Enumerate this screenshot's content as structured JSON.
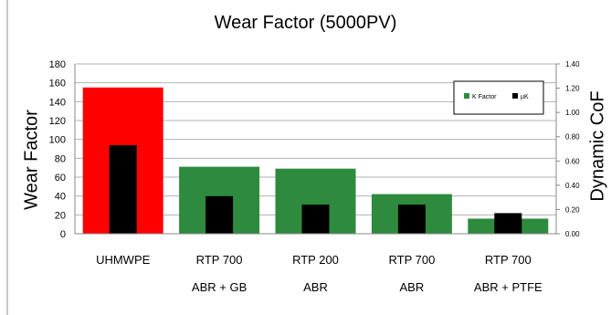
{
  "chart_data": {
    "type": "bar",
    "title": "Wear Factor (5000PV)",
    "ylabel": "Wear Factor",
    "y2label": "Dynamic CoF",
    "categories": [
      [
        "UHMWPE",
        ""
      ],
      [
        "RTP 700",
        "ABR + GB"
      ],
      [
        "RTP 200",
        "ABR"
      ],
      [
        "RTP 700",
        "ABR"
      ],
      [
        "RTP 700",
        "ABR + PTFE"
      ]
    ],
    "series": [
      {
        "name": "K Factor",
        "axis": "left",
        "values": [
          155,
          71,
          69,
          42,
          16
        ],
        "colors": [
          "#ff0000",
          "#2e8b3e",
          "#2e8b3e",
          "#2e8b3e",
          "#2e8b3e"
        ]
      },
      {
        "name": "µK",
        "axis": "right",
        "values": [
          0.73,
          0.31,
          0.24,
          0.24,
          0.17
        ],
        "color": "#000000"
      }
    ],
    "ylim": [
      0,
      180
    ],
    "yticks": [
      "0",
      "20",
      "40",
      "60",
      "80",
      "100",
      "120",
      "140",
      "160",
      "180"
    ],
    "y2lim": [
      0,
      1.4
    ],
    "y2ticks": [
      "0.00",
      "0.20",
      "0.40",
      "0.60",
      "0.80",
      "1.00",
      "1.20",
      "1.40"
    ],
    "legend_position": "top-right",
    "grid": true
  }
}
